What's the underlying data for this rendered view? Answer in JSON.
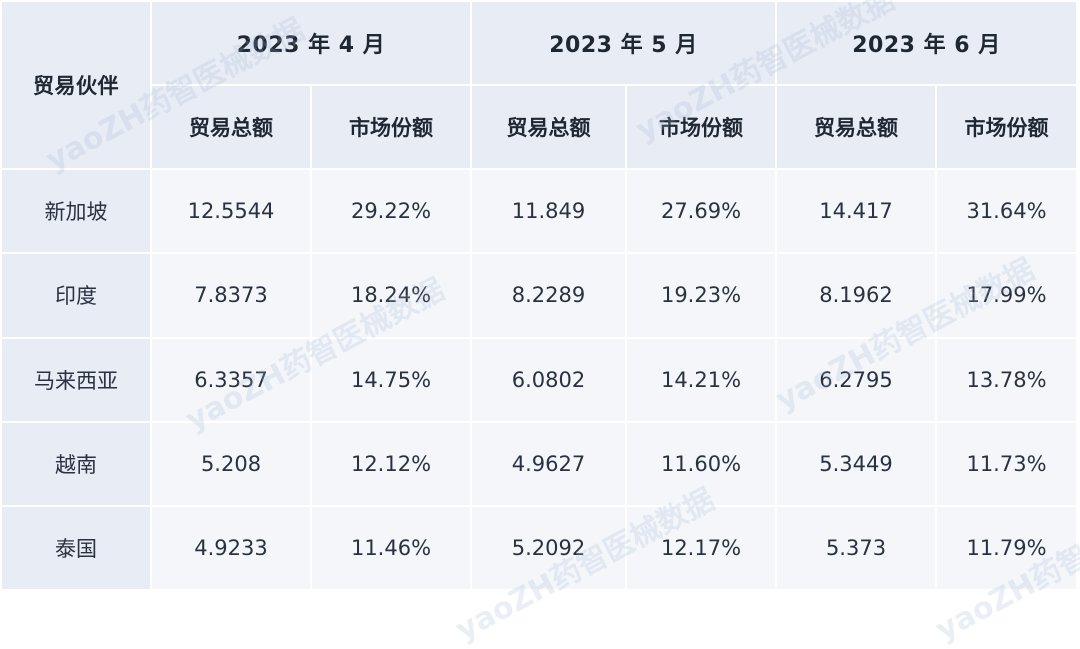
{
  "table": {
    "partner_header": "贸易伙伴",
    "months": [
      "2023 年 4 月",
      "2023 年 5 月",
      "2023 年 6 月"
    ],
    "sub_headers": [
      "贸易总额",
      "市场份额"
    ],
    "rows": [
      {
        "partner": "新加坡",
        "values": [
          "12.5544",
          "29.22%",
          "11.849",
          "27.69%",
          "14.417",
          "31.64%"
        ]
      },
      {
        "partner": "印度",
        "values": [
          "7.8373",
          "18.24%",
          "8.2289",
          "19.23%",
          "8.1962",
          "17.99%"
        ]
      },
      {
        "partner": "马来西亚",
        "values": [
          "6.3357",
          "14.75%",
          "6.0802",
          "14.21%",
          "6.2795",
          "13.78%"
        ]
      },
      {
        "partner": "越南",
        "values": [
          "5.208",
          "12.12%",
          "4.9627",
          "11.60%",
          "5.3449",
          "11.73%"
        ]
      },
      {
        "partner": "泰国",
        "values": [
          "4.9233",
          "11.46%",
          "5.2092",
          "12.17%",
          "5.373",
          "11.79%"
        ]
      }
    ]
  },
  "watermark_text": "yaoZH药智医械数据",
  "chart_data": {
    "type": "table",
    "columns": [
      "贸易伙伴",
      "2023 年 4 月 贸易总额",
      "2023 年 4 月 市场份额",
      "2023 年 5 月 贸易总额",
      "2023 年 5 月 市场份额",
      "2023 年 6 月 贸易总额",
      "2023 年 6 月 市场份额"
    ],
    "rows": [
      [
        "新加坡",
        "12.5544",
        "29.22%",
        "11.849",
        "27.69%",
        "14.417",
        "31.64%"
      ],
      [
        "印度",
        "7.8373",
        "18.24%",
        "8.2289",
        "19.23%",
        "8.1962",
        "17.99%"
      ],
      [
        "马来西亚",
        "6.3357",
        "14.75%",
        "6.0802",
        "14.21%",
        "6.2795",
        "13.78%"
      ],
      [
        "越南",
        "5.208",
        "12.12%",
        "4.9627",
        "11.60%",
        "5.3449",
        "11.73%"
      ],
      [
        "泰国",
        "4.9233",
        "11.46%",
        "5.2092",
        "12.17%",
        "5.373",
        "11.79%"
      ]
    ]
  }
}
